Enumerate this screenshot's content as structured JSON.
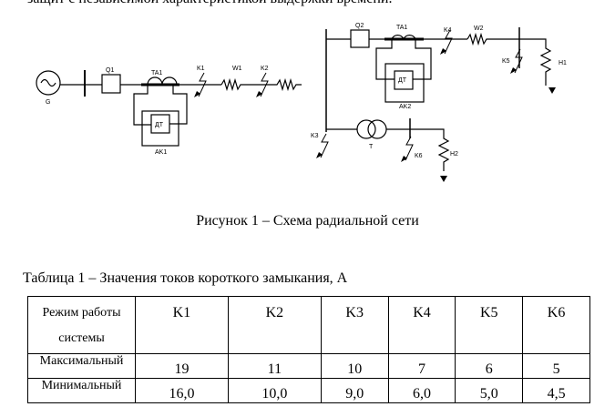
{
  "intro_text": "защит с независимой характеристикой выдержки времени.",
  "diagram": {
    "labels": {
      "G": "G",
      "Q1": "Q1",
      "TA1a": "TA1",
      "K1": "K1",
      "W1": "W1",
      "K2": "K2",
      "DT1": "ДТ",
      "AK1": "AK1",
      "Q2": "Q2",
      "TA1b": "TA1",
      "K4": "K4",
      "W2": "W2",
      "K5": "K5",
      "H1": "H1",
      "DT2": "ДТ",
      "AK2": "AK2",
      "K3": "K3",
      "T": "T",
      "K6": "K6",
      "H2": "H2"
    }
  },
  "figure_caption": "Рисунок 1 – Схема радиальной сети",
  "table": {
    "title": "Таблица 1 – Значения токов короткого замыкания, А",
    "header": [
      "Режим работы системы",
      "K1",
      "K2",
      "K3",
      "K4",
      "K5",
      "K6"
    ],
    "rows": [
      [
        "Максимальный",
        "19",
        "11",
        "10",
        "7",
        "6",
        "5"
      ],
      [
        "Минимальный",
        "16,0",
        "10,0",
        "9,0",
        "6,0",
        "5,0",
        "4,5"
      ]
    ]
  }
}
